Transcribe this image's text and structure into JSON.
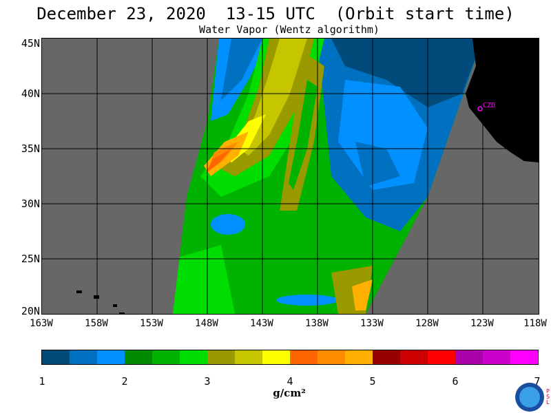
{
  "title": "December 23, 2020  13-15 UTC  (Orbit start time)",
  "subtitle": "Water Vapor (Wentz algorithm)",
  "map": {
    "lat_labels": [
      "45N",
      "40N",
      "35N",
      "30N",
      "25N",
      "20N"
    ],
    "lon_labels": [
      "163W",
      "158W",
      "153W",
      "148W",
      "143W",
      "138W",
      "133W",
      "128W",
      "123W",
      "118W"
    ],
    "station_label": "CZD",
    "colors": {
      "background": "#676767",
      "land": "#000000",
      "station": "#ff00ff"
    }
  },
  "colorbar": {
    "colors": [
      "#004b7a",
      "#0070c0",
      "#0090ff",
      "#008a00",
      "#00b300",
      "#00dd00",
      "#999900",
      "#c6c600",
      "#ffff00",
      "#ff6600",
      "#ff8c00",
      "#ffb000",
      "#990000",
      "#cc0000",
      "#ff0000",
      "#aa00aa",
      "#cc00cc",
      "#ff00ff"
    ],
    "tick_labels": [
      "1",
      "2",
      "3",
      "4",
      "5",
      "6",
      "7"
    ],
    "unit_label": "g/cm²"
  },
  "logo": {
    "name": "noaa-logo",
    "side_text": "P S L"
  }
}
